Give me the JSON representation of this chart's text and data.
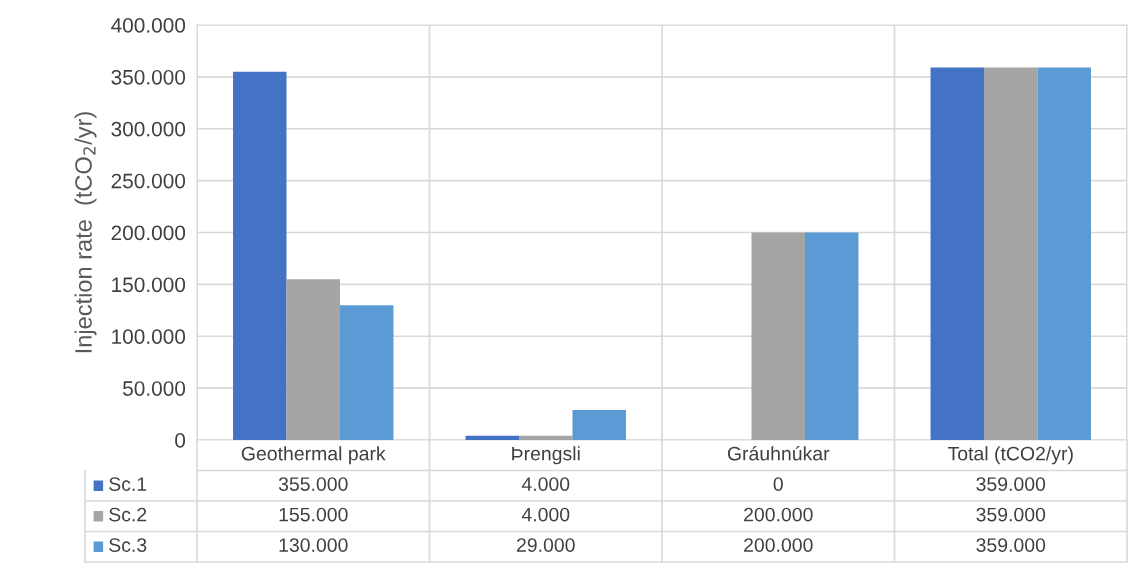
{
  "chart_data": {
    "type": "bar",
    "ylabel": "Injection rate  (tCO$_{2}$/yr)",
    "categories": [
      "Geothermal park",
      "Þrengsli",
      "Gráuhnúkar",
      "Total (tCO2/yr)"
    ],
    "series": [
      {
        "name": "Sc.1",
        "color": "#4472c4",
        "values": [
          355000,
          4000,
          0,
          359000
        ],
        "value_labels": [
          "355.000",
          "4.000",
          "0",
          "359.000"
        ]
      },
      {
        "name": "Sc.2",
        "color": "#a5a5a5",
        "values": [
          155000,
          4000,
          200000,
          359000
        ],
        "value_labels": [
          "155.000",
          "4.000",
          "200.000",
          "359.000"
        ]
      },
      {
        "name": "Sc.3",
        "color": "#5b9bd5",
        "values": [
          130000,
          29000,
          200000,
          359000
        ],
        "value_labels": [
          "130.000",
          "29.000",
          "200.000",
          "359.000"
        ]
      }
    ],
    "ylim": [
      0,
      400000
    ],
    "yticks": [
      {
        "value": 0,
        "label": "0"
      },
      {
        "value": 50000,
        "label": "50.000"
      },
      {
        "value": 100000,
        "label": "100.000"
      },
      {
        "value": 150000,
        "label": "150.000"
      },
      {
        "value": 200000,
        "label": "200.000"
      },
      {
        "value": 250000,
        "label": "250.000"
      },
      {
        "value": 300000,
        "label": "300.000"
      },
      {
        "value": 350000,
        "label": "350.000"
      },
      {
        "value": 400000,
        "label": "400.000"
      }
    ],
    "grid": "y",
    "legend": "bottom"
  }
}
